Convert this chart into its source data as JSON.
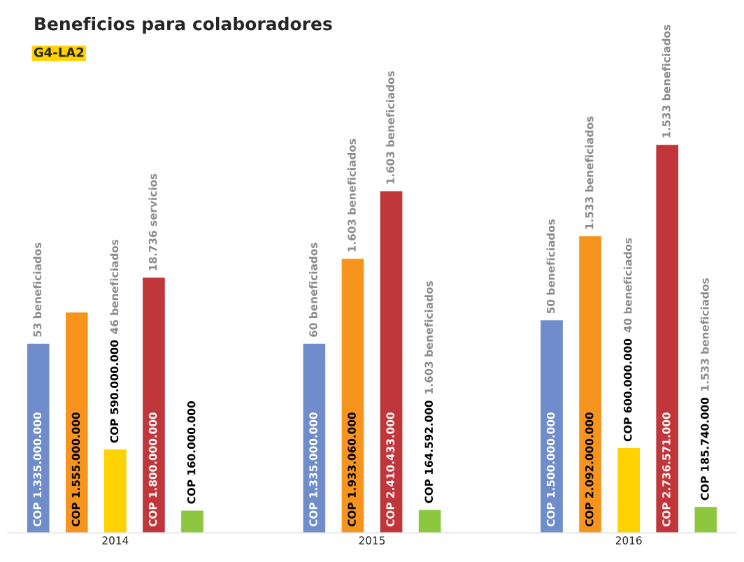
{
  "chart_data": {
    "type": "bar",
    "title": "Beneficios para colaboradores",
    "subtitle": "G4-LA2",
    "categories": [
      "2014",
      "2015",
      "2016"
    ],
    "series": [
      {
        "color": "#6f8ccb",
        "values": [
          1335000000,
          1335000000,
          1500000000
        ],
        "value_labels": [
          "COP 1.335.000.000",
          "COP 1.335.000.000",
          "COP 1.500.000.000"
        ]
      },
      {
        "color": "#f7941d",
        "values": [
          1555000000,
          1933060000,
          2092000000
        ],
        "value_labels": [
          "COP 1.555.000.000",
          "COP 1.933.060.000",
          "COP 2.092.000.000"
        ]
      },
      {
        "color": "#ffd200",
        "values": [
          590000000,
          null,
          600000000
        ],
        "value_labels": [
          "COP 590.000.000",
          null,
          "COP 600.000.000"
        ]
      },
      {
        "color": "#c0363a",
        "values": [
          1800000000,
          2410433000,
          2736571000
        ],
        "value_labels": [
          "COP 1.800.000.000",
          "COP 2.410.433.000",
          "COP 2.736.571.000"
        ]
      },
      {
        "color": "#8dc63f",
        "values": [
          160000000,
          164592000,
          185740000
        ],
        "value_labels": [
          "COP 160.000.000",
          "COP 164.592.000",
          "COP 185.740.000"
        ]
      }
    ],
    "annotations": [
      "53 beneficiados",
      "46 beneficiados",
      "18.736 servicios",
      "60 beneficiados",
      "1.603 beneficiados",
      "1.603 beneficiados",
      "1.603 beneficiados",
      "50 beneficiados",
      "1.533 beneficiados",
      "40 beneficiados",
      "1.533 beneficiados",
      "1.533 beneficiados"
    ],
    "legend": false,
    "grid": false
  }
}
